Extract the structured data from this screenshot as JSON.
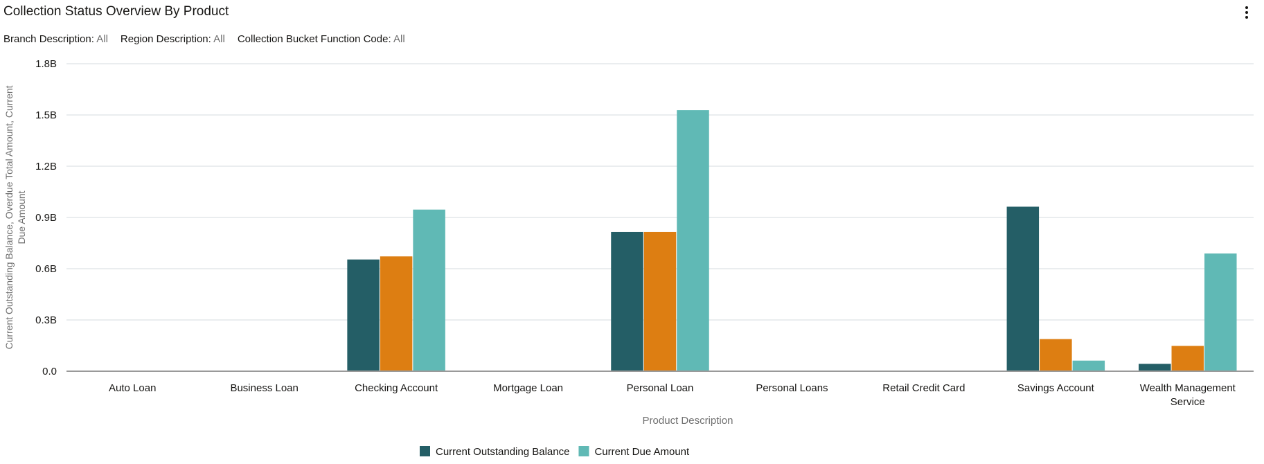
{
  "header": {
    "title": "Collection Status Overview By Product",
    "menu_icon": "kebab-vertical-icon"
  },
  "filters": [
    {
      "label": "Branch Description:",
      "value": "All"
    },
    {
      "label": "Region Description:",
      "value": "All"
    },
    {
      "label": "Collection Bucket Function Code:",
      "value": "All"
    }
  ],
  "chart_data": {
    "type": "bar",
    "xlabel": "Product Description",
    "ylabel_lines": [
      "Current Outstanding Balance, Overdue Total Amount, Current",
      "Due Amount"
    ],
    "ylim": [
      0,
      1.8
    ],
    "y_unit": "B",
    "yticks": [
      "0.0",
      "0.3B",
      "0.6B",
      "0.9B",
      "1.2B",
      "1.5B",
      "1.8B"
    ],
    "grid": true,
    "legend_position": "bottom",
    "categories": [
      "Auto Loan",
      "Business Loan",
      "Checking Account",
      "Mortgage Loan",
      "Personal Loan",
      "Personal Loans",
      "Retail Credit Card",
      "Savings Account",
      "Wealth Management Service"
    ],
    "series": [
      {
        "name": "Current Outstanding Balance",
        "color": "#245E66",
        "values": [
          0,
          0,
          0.654,
          0,
          0.815,
          0,
          0,
          0.963,
          0.043
        ]
      },
      {
        "color": "#DD7E12",
        "values": [
          0,
          0,
          0.672,
          0,
          0.815,
          0,
          0,
          0.188,
          0.148
        ]
      },
      {
        "name": "Current Due Amount",
        "color": "#60B9B5",
        "values": [
          0,
          0,
          0.946,
          0,
          1.528,
          0,
          0,
          0.062,
          0.689
        ]
      }
    ]
  }
}
